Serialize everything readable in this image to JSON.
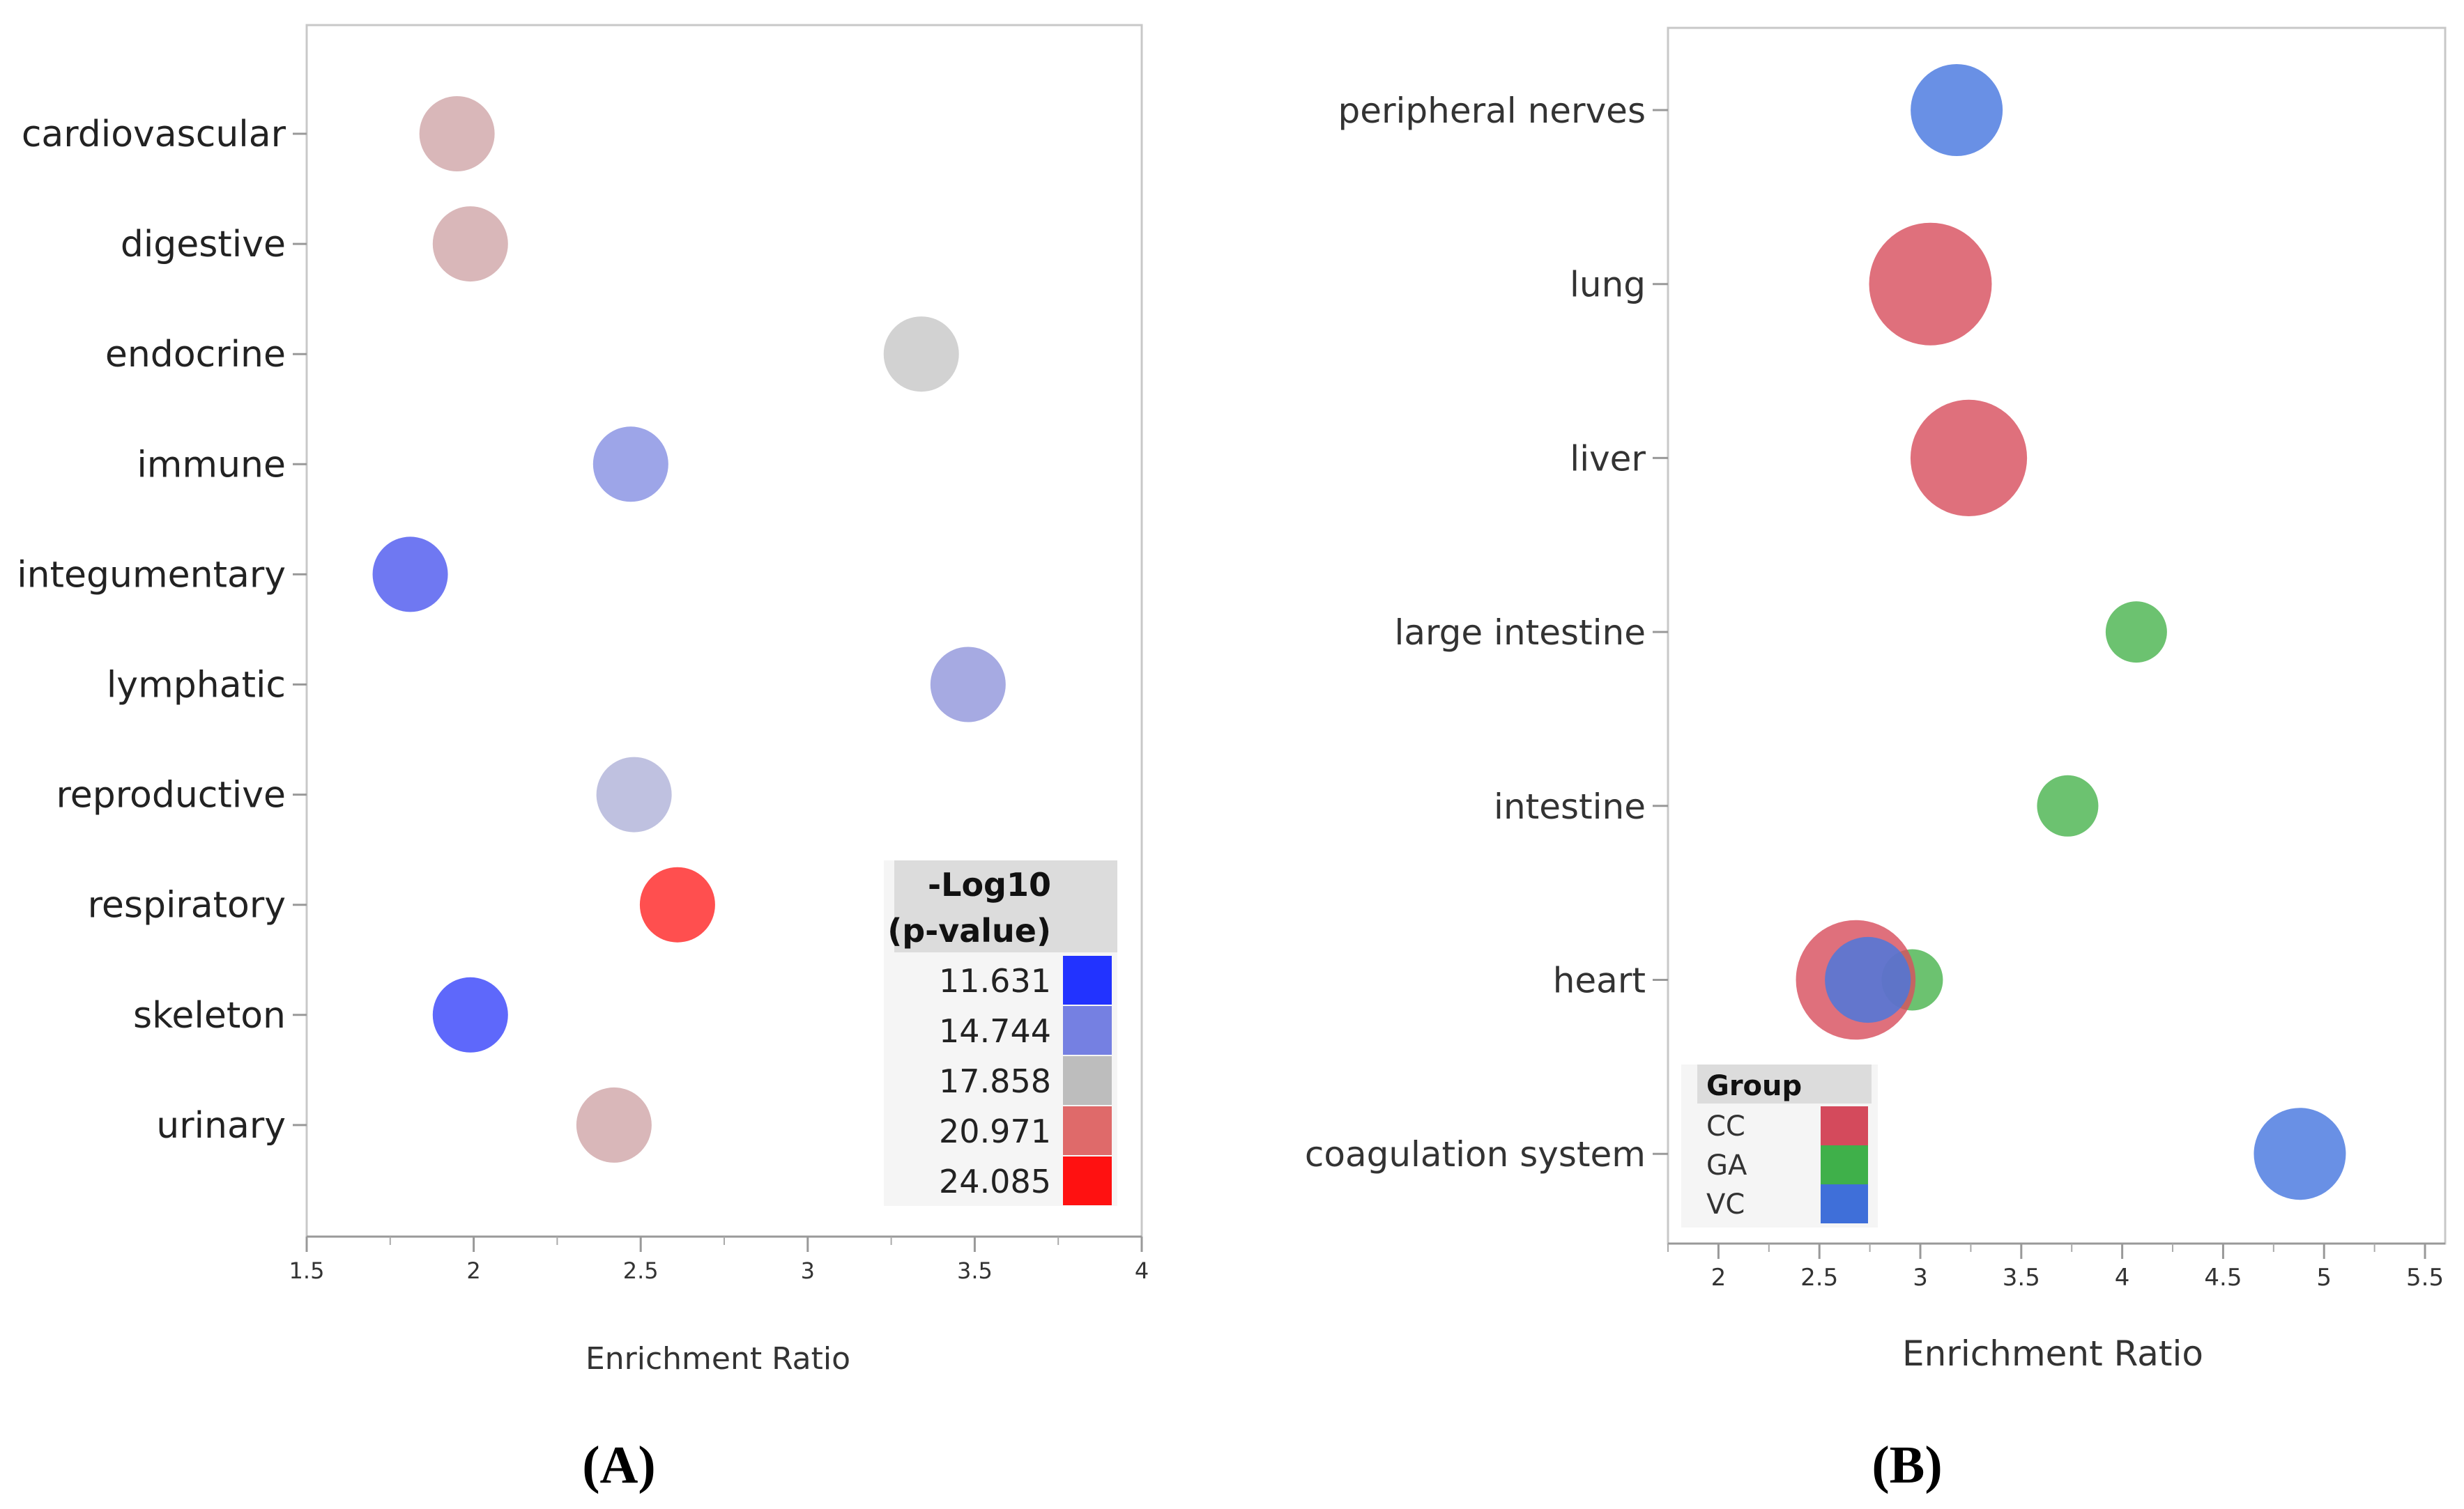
{
  "chart_data": [
    {
      "panel": "A",
      "type": "scatter",
      "panel_label": "(A)",
      "xlabel": "Enrichment Ratio",
      "xlim": [
        1.5,
        4
      ],
      "x_ticks": [
        "1.5",
        "2",
        "2.5",
        "3",
        "3.5",
        "4"
      ],
      "categories": [
        "cardiovascular",
        "digestive",
        "endocrine",
        "immune",
        "integumentary",
        "lymphatic",
        "reproductive",
        "respiratory",
        "skeleton",
        "urinary"
      ],
      "points": [
        {
          "category": "cardiovascular",
          "x": 1.95,
          "color": "#d9b7b9"
        },
        {
          "category": "digestive",
          "x": 1.99,
          "color": "#d9b7b9"
        },
        {
          "category": "endocrine",
          "x": 3.34,
          "color": "#d2d2d2"
        },
        {
          "category": "immune",
          "x": 2.47,
          "color": "#9da5e8"
        },
        {
          "category": "integumentary",
          "x": 1.81,
          "color": "#6f78f2"
        },
        {
          "category": "lymphatic",
          "x": 3.48,
          "color": "#a6aae2"
        },
        {
          "category": "reproductive",
          "x": 2.48,
          "color": "#bfc1e0"
        },
        {
          "category": "respiratory",
          "x": 2.61,
          "color": "#ff4f4f"
        },
        {
          "category": "skeleton",
          "x": 1.99,
          "color": "#5e68fb"
        },
        {
          "category": "urinary",
          "x": 2.42,
          "color": "#d9b7b9"
        }
      ],
      "legend": {
        "title_line1": "-Log10",
        "title_line2": "(p-value)",
        "placement": "bottom-right",
        "items": [
          {
            "label": "11.631",
            "color": "#2233ff"
          },
          {
            "label": "14.744",
            "color": "#7580e2"
          },
          {
            "label": "17.858",
            "color": "#bdbdbd"
          },
          {
            "label": "20.971",
            "color": "#df6a6a"
          },
          {
            "label": "24.085",
            "color": "#ff1111"
          }
        ]
      }
    },
    {
      "panel": "B",
      "type": "scatter",
      "panel_label": "(B)",
      "xlabel": "Enrichment Ratio",
      "xlim": [
        1.75,
        5.6
      ],
      "x_ticks": [
        "2",
        "2.5",
        "3",
        "3.5",
        "4",
        "4.5",
        "5",
        "5.5"
      ],
      "categories": [
        "peripheral nerves",
        "lung",
        "liver",
        "large intestine",
        "intestine",
        "heart",
        "coagulation system"
      ],
      "points": [
        {
          "category": "peripheral nerves",
          "x": 3.18,
          "group": "VC",
          "size": 3
        },
        {
          "category": "lung",
          "x": 3.05,
          "group": "CC",
          "size": 4
        },
        {
          "category": "liver",
          "x": 3.24,
          "group": "CC",
          "size": 3.8
        },
        {
          "category": "large intestine",
          "x": 4.07,
          "group": "GA",
          "size": 2
        },
        {
          "category": "intestine",
          "x": 3.73,
          "group": "GA",
          "size": 2
        },
        {
          "category": "heart",
          "x": 2.96,
          "group": "GA",
          "size": 2
        },
        {
          "category": "heart",
          "x": 2.68,
          "group": "CC",
          "size": 3.9
        },
        {
          "category": "heart",
          "x": 2.74,
          "group": "VC",
          "size": 2.8
        },
        {
          "category": "coagulation system",
          "x": 4.88,
          "group": "VC",
          "size": 3
        }
      ],
      "legend": {
        "title": "Group",
        "placement": "bottom-left",
        "items": [
          {
            "label": "CC",
            "color": "#d44a5c"
          },
          {
            "label": "GA",
            "color": "#3fb04a"
          },
          {
            "label": "VC",
            "color": "#3f6fd9"
          }
        ]
      },
      "group_colors": {
        "CC": "#d8505f",
        "GA": "#4cb550",
        "VC": "#4877df"
      }
    }
  ]
}
